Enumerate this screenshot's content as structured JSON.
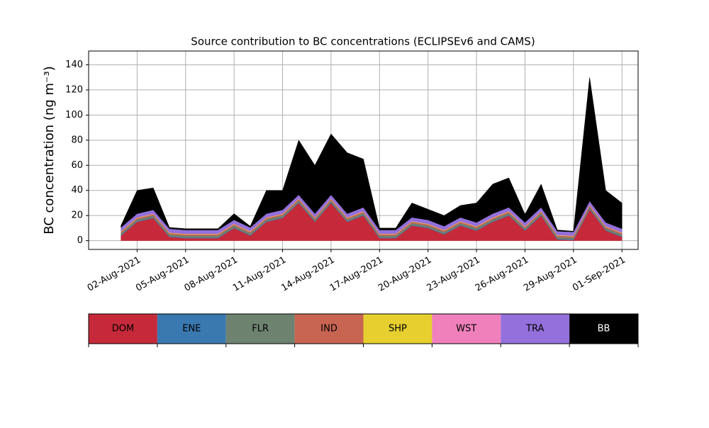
{
  "chart_data": {
    "type": "stacked_area",
    "title": "Source contribution to BC concentrations (ECLIPSEv6 and CAMS)",
    "y_label": "BC concentration (ng m⁻³)",
    "x": [
      "2021-08-01",
      "2021-08-02",
      "2021-08-03",
      "2021-08-04",
      "2021-08-05",
      "2021-08-06",
      "2021-08-07",
      "2021-08-08",
      "2021-08-09",
      "2021-08-10",
      "2021-08-11",
      "2021-08-12",
      "2021-08-13",
      "2021-08-14",
      "2021-08-15",
      "2021-08-16",
      "2021-08-17",
      "2021-08-18",
      "2021-08-19",
      "2021-08-20",
      "2021-08-21",
      "2021-08-22",
      "2021-08-23",
      "2021-08-24",
      "2021-08-25",
      "2021-08-26",
      "2021-08-27",
      "2021-08-28",
      "2021-08-29",
      "2021-08-30",
      "2021-08-31",
      "2021-09-01"
    ],
    "xlim": [
      "2021-07-30",
      "2021-09-02"
    ],
    "xticks": [
      {
        "value": "2021-08-02",
        "label": "02-Aug-2021"
      },
      {
        "value": "2021-08-05",
        "label": "05-Aug-2021"
      },
      {
        "value": "2021-08-08",
        "label": "08-Aug-2021"
      },
      {
        "value": "2021-08-11",
        "label": "11-Aug-2021"
      },
      {
        "value": "2021-08-14",
        "label": "14-Aug-2021"
      },
      {
        "value": "2021-08-17",
        "label": "17-Aug-2021"
      },
      {
        "value": "2021-08-20",
        "label": "20-Aug-2021"
      },
      {
        "value": "2021-08-23",
        "label": "23-Aug-2021"
      },
      {
        "value": "2021-08-26",
        "label": "26-Aug-2021"
      },
      {
        "value": "2021-08-29",
        "label": "29-Aug-2021"
      },
      {
        "value": "2021-09-01",
        "label": "01-Sep-2021"
      }
    ],
    "ylim": [
      -7,
      151
    ],
    "yticks": [
      0,
      20,
      40,
      60,
      80,
      100,
      120,
      140
    ],
    "grid": true,
    "series": [
      {
        "name": "DOM",
        "color": "#c62a3a",
        "values": [
          4,
          15,
          18,
          3,
          2,
          2,
          2,
          10,
          4,
          15,
          18,
          30,
          15,
          30,
          15,
          20,
          2,
          2,
          12,
          10,
          5,
          12,
          8,
          15,
          20,
          8,
          20,
          1,
          0.5,
          25,
          8,
          3
        ]
      },
      {
        "name": "ENE",
        "color": "#3a78b0",
        "values": [
          0.5,
          0.5,
          0.5,
          0.5,
          0.5,
          0.5,
          0.5,
          0.5,
          0.5,
          0.5,
          0.5,
          0.5,
          0.5,
          0.5,
          0.5,
          0.5,
          0.5,
          0.5,
          0.5,
          0.5,
          0.5,
          0.5,
          0.5,
          0.5,
          0.5,
          0.5,
          0.5,
          0.5,
          0.5,
          0.5,
          0.5,
          0.5
        ]
      },
      {
        "name": "FLR",
        "color": "#6e8270",
        "values": [
          1.5,
          1.5,
          1.5,
          1.5,
          1.5,
          1.5,
          1.5,
          1.5,
          1.5,
          1.5,
          1.5,
          1.5,
          1.5,
          1.5,
          1.5,
          1.5,
          1.5,
          1.5,
          1.5,
          1.5,
          1.5,
          1.5,
          1.5,
          1.5,
          1.5,
          1.5,
          1.5,
          1.5,
          1.5,
          1.5,
          1.5,
          1.5
        ]
      },
      {
        "name": "IND",
        "color": "#c86452",
        "values": [
          1,
          1,
          1,
          1,
          1,
          1,
          1,
          1,
          1,
          1,
          1,
          1,
          1,
          1,
          1,
          1,
          1,
          1,
          1,
          1,
          1,
          1,
          1,
          1,
          1,
          1,
          1,
          1,
          1,
          1,
          1,
          1
        ]
      },
      {
        "name": "SHP",
        "color": "#e6cf2e",
        "values": [
          0.3,
          0.3,
          0.3,
          0.3,
          0.3,
          0.3,
          0.3,
          0.3,
          0.3,
          0.3,
          0.3,
          0.3,
          0.3,
          0.3,
          0.3,
          0.3,
          0.3,
          0.3,
          0.3,
          0.3,
          0.3,
          0.3,
          0.3,
          0.3,
          0.3,
          0.3,
          0.3,
          0.3,
          0.3,
          0.3,
          0.3,
          0.3
        ]
      },
      {
        "name": "WST",
        "color": "#f080bc",
        "values": [
          0.2,
          0.2,
          0.2,
          0.2,
          0.2,
          0.2,
          0.2,
          0.2,
          0.2,
          0.2,
          0.2,
          0.2,
          0.2,
          0.2,
          0.2,
          0.2,
          0.2,
          0.2,
          0.2,
          0.2,
          0.2,
          0.2,
          0.2,
          0.2,
          0.2,
          0.2,
          0.2,
          0.2,
          0.2,
          0.2,
          0.2,
          0.2
        ]
      },
      {
        "name": "TRA",
        "color": "#9370db",
        "values": [
          3,
          3,
          3,
          3,
          3,
          3,
          3,
          3,
          3,
          3,
          3,
          3,
          3,
          3,
          3,
          3,
          3,
          3,
          3,
          3,
          3,
          3,
          3,
          3,
          3,
          3,
          3,
          3,
          3,
          3,
          3,
          3
        ]
      },
      {
        "name": "BB",
        "color": "#000000",
        "values": [
          1.5,
          18.5,
          17.5,
          1,
          1,
          1,
          1,
          5,
          1,
          18.5,
          15.5,
          43.5,
          38.5,
          48.5,
          48.5,
          38.5,
          1.5,
          1.5,
          11.5,
          8.5,
          8.5,
          9.5,
          15.5,
          23.5,
          23.5,
          6.5,
          18.5,
          1,
          0.5,
          98.5,
          25.5,
          20.5
        ]
      }
    ]
  }
}
